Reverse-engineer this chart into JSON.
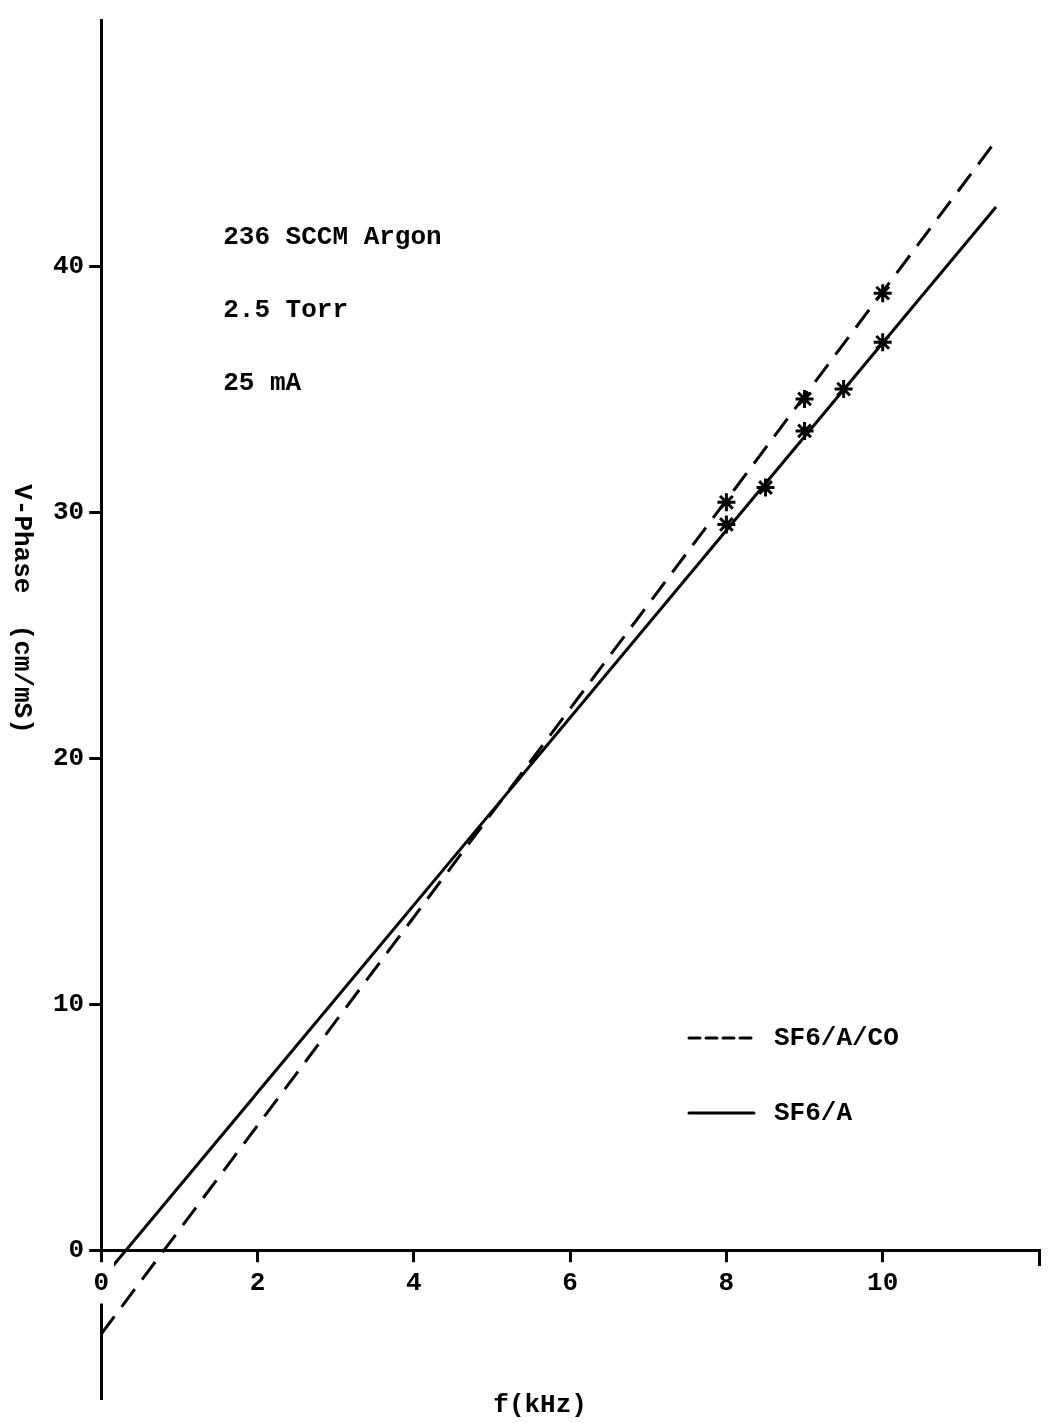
{
  "chart_data": {
    "type": "scatter",
    "xlabel": "f(kHz)",
    "ylabel": "V-Phase  (cm/mS)",
    "annotations": [
      "236 SCCM Argon",
      "2.5 Torr",
      "25 mA"
    ],
    "xlim": [
      0,
      12
    ],
    "ylim": [
      -6,
      50
    ],
    "xticks": [
      0,
      2,
      4,
      6,
      8,
      10,
      {
        "value": 12,
        "label": null
      }
    ],
    "yticks": [
      0,
      10,
      20,
      30,
      40
    ],
    "legend": "bottom right",
    "series": [
      {
        "name": "SF6/A/CO",
        "type": "line",
        "color": "#000000",
        "line_style": "dashed",
        "x": [
          0,
          11.45
        ],
        "values": [
          -3.4,
          45.1
        ]
      },
      {
        "name": "SF6/A",
        "type": "line",
        "color": "#000000",
        "line_style": "solid",
        "x": [
          0,
          11.45
        ],
        "values": [
          -1.2,
          42.4
        ]
      },
      {
        "color": "#000000",
        "marker": "cross",
        "x": [
          8,
          9,
          10
        ],
        "values": [
          30.4,
          34.6,
          38.9
        ]
      },
      {
        "color": "#000000",
        "marker": "cross",
        "x": [
          8,
          8.5,
          9,
          9.5,
          10
        ],
        "values": [
          29.5,
          31.0,
          33.3,
          35.0,
          36.9
        ]
      }
    ]
  }
}
